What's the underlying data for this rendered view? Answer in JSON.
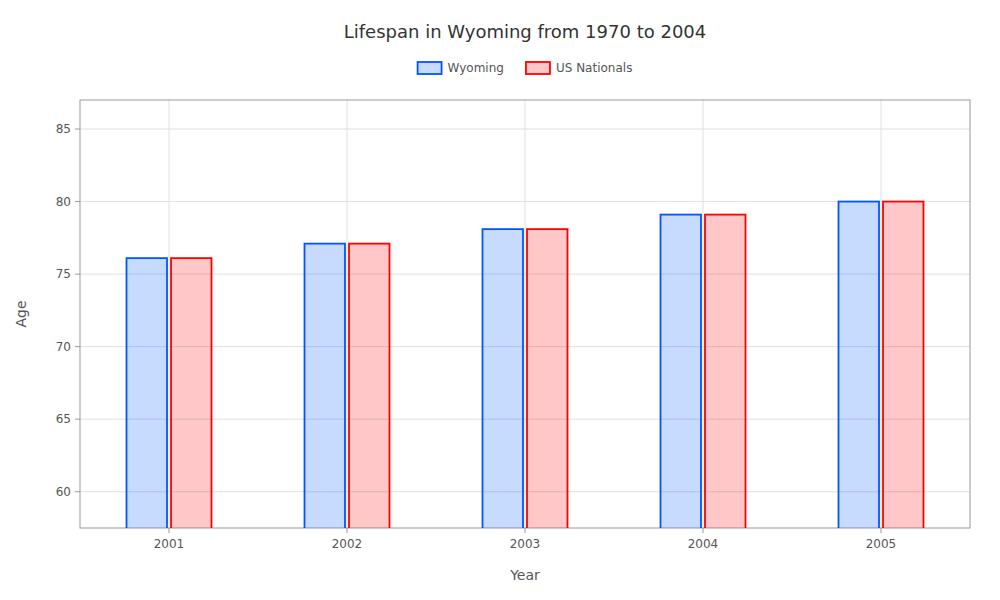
{
  "chart_data": {
    "type": "bar",
    "title": "Lifespan in Wyoming from 1970 to 2004",
    "xlabel": "Year",
    "ylabel": "Age",
    "categories": [
      "2001",
      "2002",
      "2003",
      "2004",
      "2005"
    ],
    "series": [
      {
        "name": "Wyoming",
        "color": "#0055ff",
        "values": [
          76.1,
          77.1,
          78.1,
          79.1,
          80.0
        ]
      },
      {
        "name": "US Nationals",
        "color": "#ff0000",
        "values": [
          76.1,
          77.1,
          78.1,
          79.1,
          80.0
        ]
      }
    ],
    "ylim": [
      57.5,
      87
    ],
    "yticks": [
      60,
      65,
      70,
      75,
      80,
      85
    ],
    "grid": true,
    "legend": "top"
  }
}
